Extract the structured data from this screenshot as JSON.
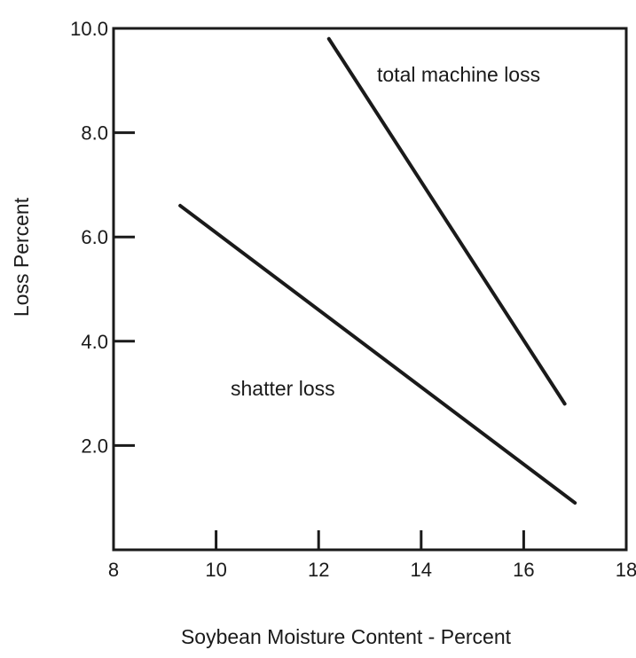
{
  "chart_data": {
    "type": "line",
    "xlabel": "Soybean Moisture Content - Percent",
    "ylabel": "Loss Percent",
    "xlim": [
      8,
      18
    ],
    "ylim": [
      0,
      10
    ],
    "x_ticks": [
      "8",
      "10",
      "12",
      "14",
      "16",
      "18"
    ],
    "y_ticks": [
      "2.0",
      "4.0",
      "6.0",
      "8.0",
      "10.0"
    ],
    "grid": false,
    "legend": "none",
    "series": [
      {
        "name": "total machine loss",
        "x": [
          12.2,
          16.8
        ],
        "y": [
          9.8,
          2.8
        ]
      },
      {
        "name": "shatter loss",
        "x": [
          9.3,
          17.0
        ],
        "y": [
          6.6,
          0.9
        ]
      }
    ]
  }
}
